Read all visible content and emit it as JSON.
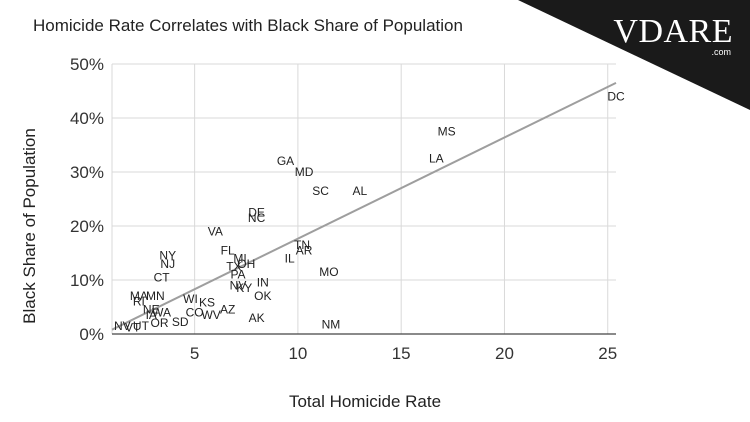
{
  "watermark": {
    "brand": "VDARE",
    "domain": ".com"
  },
  "colors": {
    "trendline": "#9e9e9e",
    "grid": "#d9d9d9",
    "axis": "#444444",
    "label": "#222222"
  },
  "chart_data": {
    "type": "scatter",
    "title": "Homicide Rate Correlates with Black Share of Population",
    "xlabel": "Total Homicide Rate",
    "ylabel": "Black Share of Population",
    "xlim": [
      1,
      25.4
    ],
    "ylim": [
      0,
      50
    ],
    "xticks": [
      5,
      10,
      15,
      20,
      25
    ],
    "yticks": [
      0,
      10,
      20,
      30,
      40,
      50
    ],
    "ytick_labels": [
      "0%",
      "10%",
      "20%",
      "30%",
      "40%",
      "50%"
    ],
    "grid": true,
    "trendline": {
      "x": [
        1,
        25.4
      ],
      "y": [
        0.8,
        46.5
      ]
    },
    "points": [
      {
        "label": "DC",
        "x": 25.4,
        "y": 44
      },
      {
        "label": "MS",
        "x": 17.2,
        "y": 37.5
      },
      {
        "label": "LA",
        "x": 16.7,
        "y": 32.5
      },
      {
        "label": "GA",
        "x": 9.4,
        "y": 32
      },
      {
        "label": "MD",
        "x": 10.3,
        "y": 30
      },
      {
        "label": "SC",
        "x": 11.1,
        "y": 26.5
      },
      {
        "label": "AL",
        "x": 13.0,
        "y": 26.5
      },
      {
        "label": "DE",
        "x": 8.0,
        "y": 22.5
      },
      {
        "label": "NC",
        "x": 8.0,
        "y": 21.5
      },
      {
        "label": "VA",
        "x": 6.0,
        "y": 19
      },
      {
        "label": "TN",
        "x": 10.2,
        "y": 16.5
      },
      {
        "label": "AR",
        "x": 10.3,
        "y": 15.5
      },
      {
        "label": "IL",
        "x": 9.6,
        "y": 14
      },
      {
        "label": "FL",
        "x": 6.6,
        "y": 15.5
      },
      {
        "label": "MI",
        "x": 7.2,
        "y": 14
      },
      {
        "label": "NY",
        "x": 3.7,
        "y": 14.5
      },
      {
        "label": "NJ",
        "x": 3.7,
        "y": 13
      },
      {
        "label": "OH",
        "x": 7.5,
        "y": 13
      },
      {
        "label": "TX",
        "x": 6.9,
        "y": 12.5
      },
      {
        "label": "MO",
        "x": 11.5,
        "y": 11.5
      },
      {
        "label": "CT",
        "x": 3.4,
        "y": 10.5
      },
      {
        "label": "PA",
        "x": 7.1,
        "y": 11
      },
      {
        "label": "IN",
        "x": 8.3,
        "y": 9.5
      },
      {
        "label": "NV",
        "x": 7.1,
        "y": 9
      },
      {
        "label": "KY",
        "x": 7.4,
        "y": 8.5
      },
      {
        "label": "OK",
        "x": 8.3,
        "y": 7
      },
      {
        "label": "MA",
        "x": 2.3,
        "y": 7
      },
      {
        "label": "MN",
        "x": 3.1,
        "y": 7
      },
      {
        "label": "RI",
        "x": 2.3,
        "y": 6
      },
      {
        "label": "WI",
        "x": 4.8,
        "y": 6.5
      },
      {
        "label": "KS",
        "x": 5.6,
        "y": 5.8
      },
      {
        "label": "NE",
        "x": 2.9,
        "y": 4.5
      },
      {
        "label": "AZ",
        "x": 6.6,
        "y": 4.5
      },
      {
        "label": "CO",
        "x": 5.0,
        "y": 4
      },
      {
        "label": "WV",
        "x": 5.8,
        "y": 3.5
      },
      {
        "label": "AK",
        "x": 8.0,
        "y": 3
      },
      {
        "label": "IA",
        "x": 2.9,
        "y": 3.5
      },
      {
        "label": "WA",
        "x": 3.4,
        "y": 4
      },
      {
        "label": "OR",
        "x": 3.3,
        "y": 2
      },
      {
        "label": "SD",
        "x": 4.3,
        "y": 2.2
      },
      {
        "label": "UT",
        "x": 2.4,
        "y": 1.5
      },
      {
        "label": "NM",
        "x": 11.6,
        "y": 1.8
      },
      {
        "label": "NV",
        "x": 1.5,
        "y": 1.5
      },
      {
        "label": "VT",
        "x": 2.0,
        "y": 1.2
      }
    ]
  }
}
